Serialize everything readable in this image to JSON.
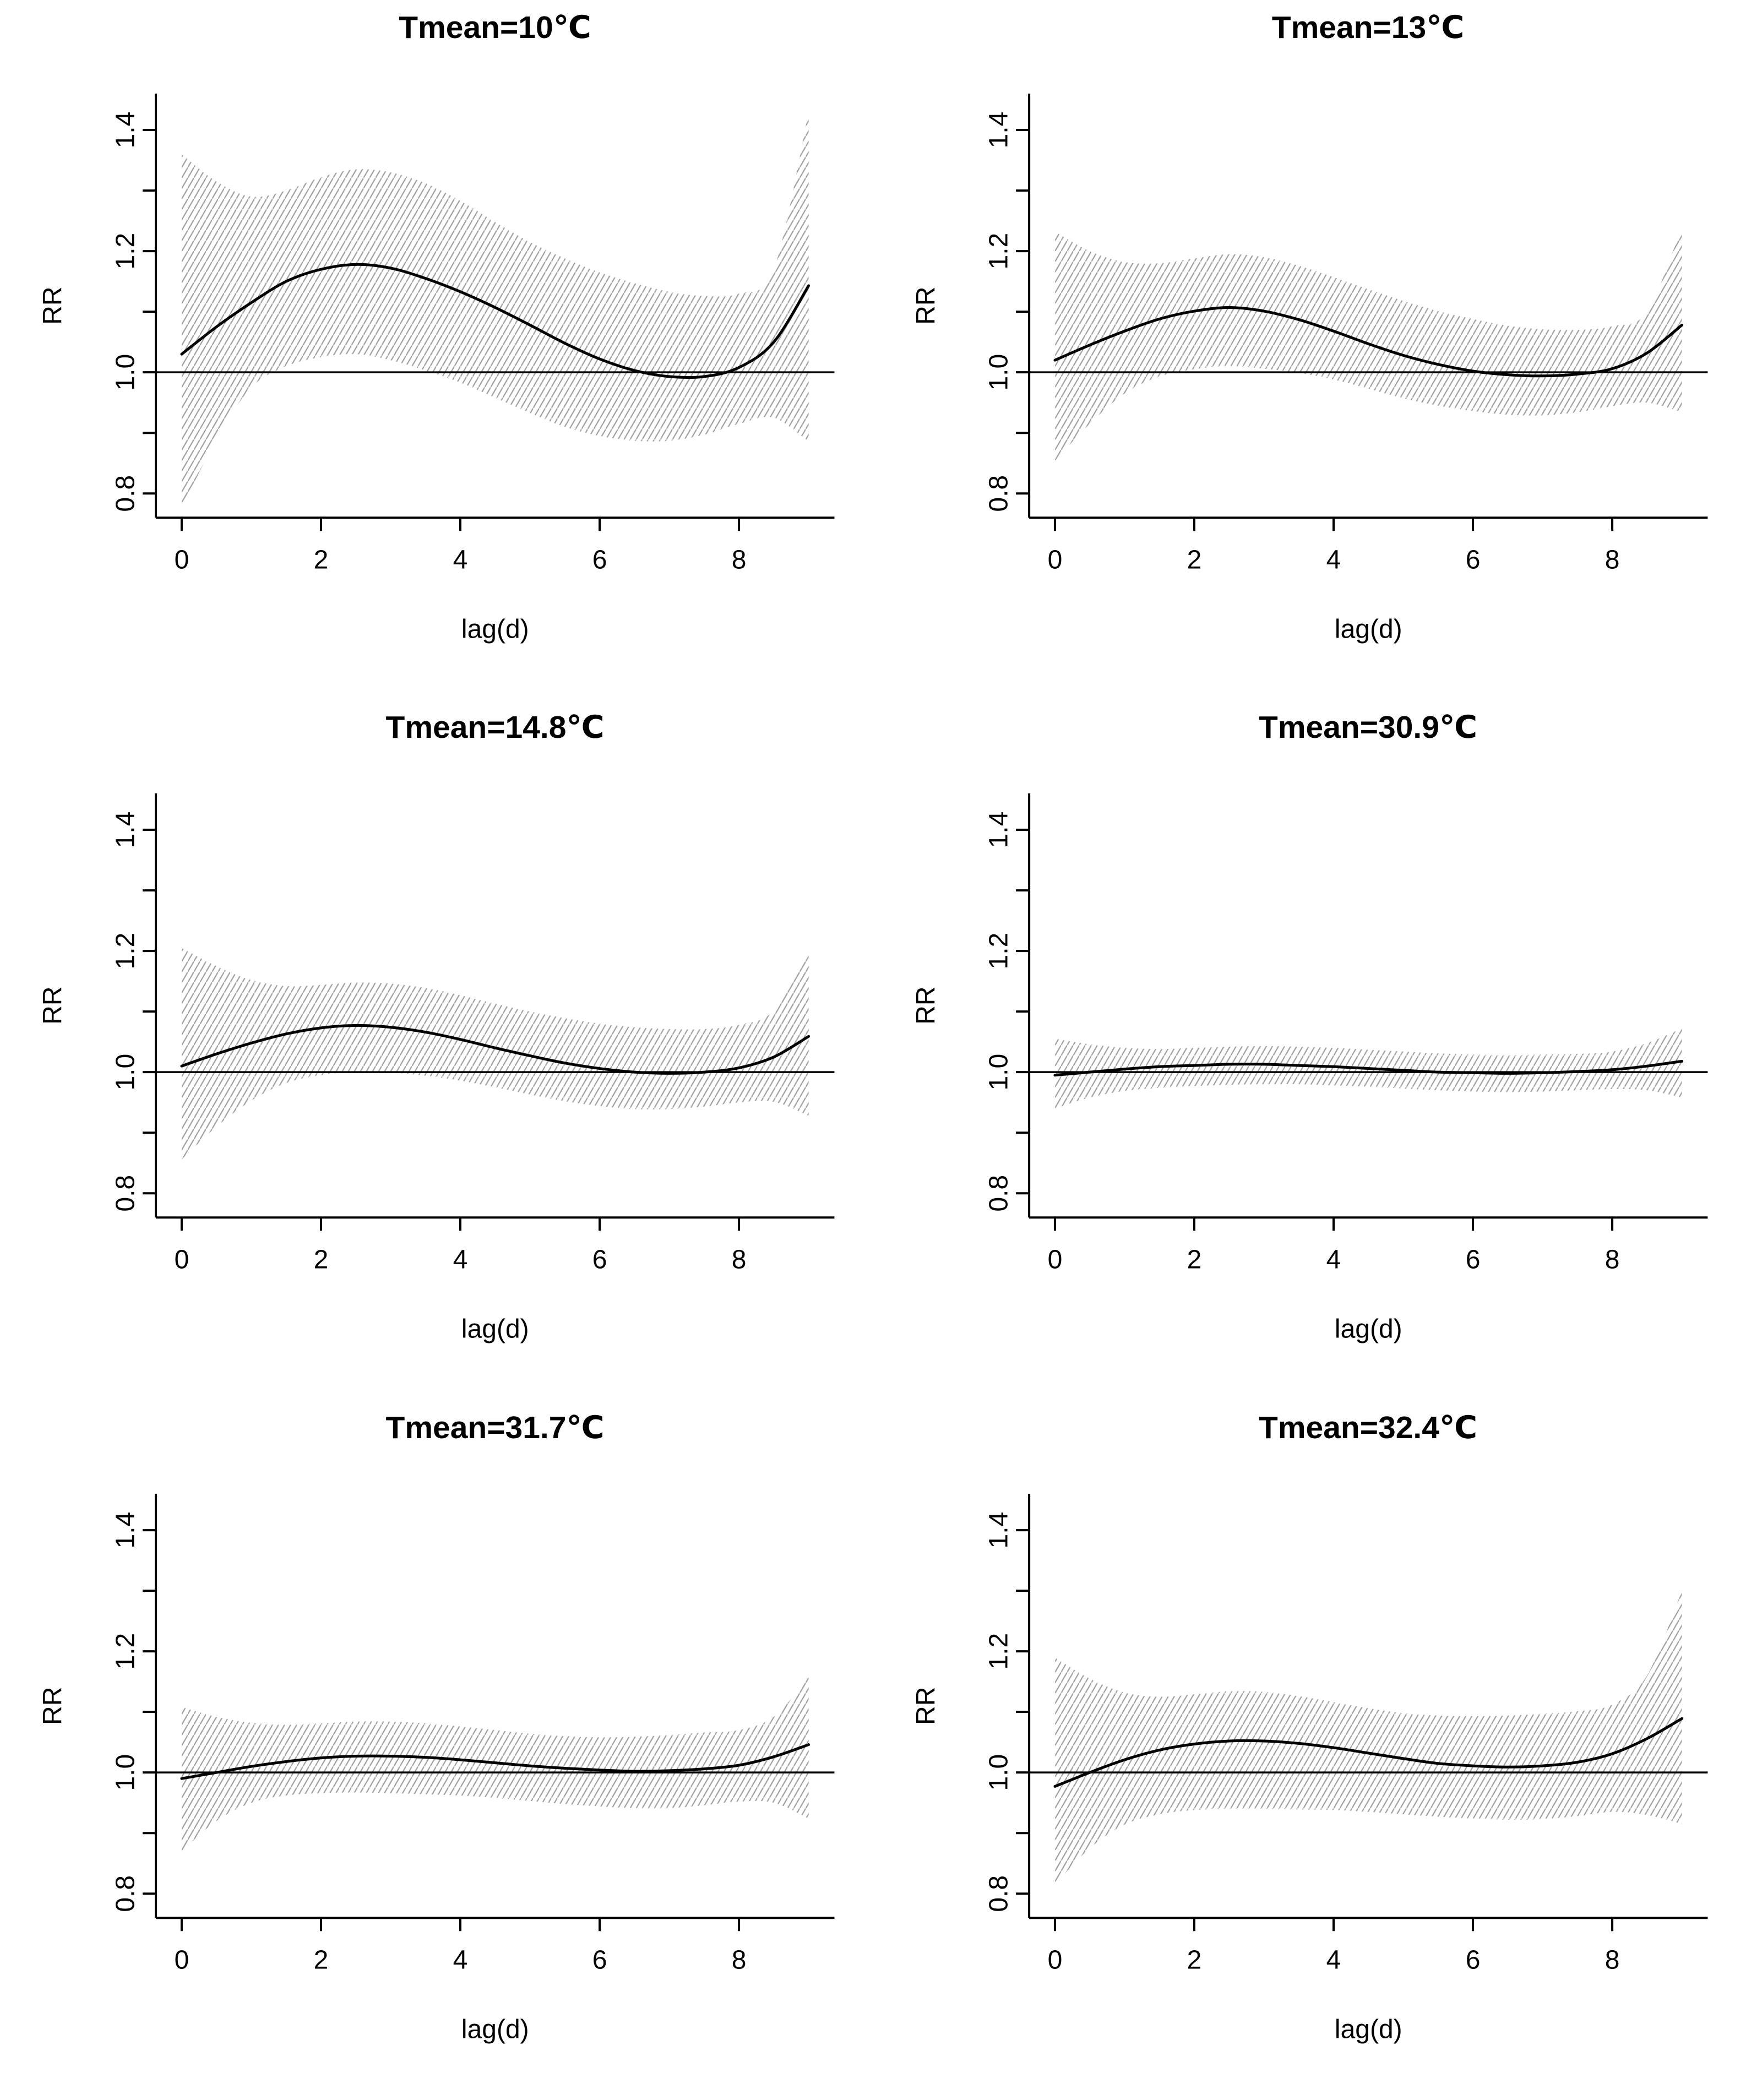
{
  "figure": {
    "layout": "2x3-grid",
    "background": "#ffffff",
    "text_color": "#000000",
    "curve_color": "#000000",
    "band_hatch_color": "#a0a0a0"
  },
  "chart_data": [
    {
      "type": "line",
      "title": "Tmean=10℃",
      "xlabel": "lag(d)",
      "ylabel": "RR",
      "x": [
        0,
        0.5,
        1,
        1.5,
        2,
        2.5,
        3,
        3.5,
        4,
        4.5,
        5,
        5.5,
        6,
        6.5,
        7,
        7.5,
        8,
        8.5,
        9
      ],
      "series": [
        {
          "name": "RR",
          "values": [
            1.03,
            1.075,
            1.115,
            1.15,
            1.17,
            1.178,
            1.172,
            1.155,
            1.133,
            1.107,
            1.078,
            1.048,
            1.022,
            1.003,
            0.993,
            0.993,
            1.008,
            1.05,
            1.143
          ]
        },
        {
          "name": "upper-CI",
          "values": [
            1.36,
            1.315,
            1.29,
            1.3,
            1.322,
            1.335,
            1.33,
            1.312,
            1.283,
            1.248,
            1.215,
            1.188,
            1.165,
            1.147,
            1.133,
            1.126,
            1.13,
            1.17,
            1.43
          ]
        },
        {
          "name": "lower-CI",
          "values": [
            0.775,
            0.89,
            0.975,
            1.01,
            1.025,
            1.03,
            1.02,
            1.003,
            0.983,
            0.958,
            0.933,
            0.91,
            0.895,
            0.887,
            0.887,
            0.897,
            0.915,
            0.925,
            0.885
          ]
        }
      ],
      "reference_line_y": 1.0,
      "x_ticks": [
        0,
        2,
        4,
        6,
        8
      ],
      "y_ticks": [
        0.8,
        0.9,
        1.0,
        1.1,
        1.2,
        1.3,
        1.4
      ],
      "y_tick_labels": [
        "0.8",
        "",
        "1.0",
        "",
        "1.2",
        "",
        "1.4"
      ],
      "xlim": [
        0,
        9
      ],
      "ylim": [
        0.76,
        1.46
      ],
      "grid": false,
      "legend": "none"
    },
    {
      "type": "line",
      "title": "Tmean=13℃",
      "xlabel": "lag(d)",
      "ylabel": "RR",
      "x": [
        0,
        0.5,
        1,
        1.5,
        2,
        2.5,
        3,
        3.5,
        4,
        4.5,
        5,
        5.5,
        6,
        6.5,
        7,
        7.5,
        8,
        8.5,
        9
      ],
      "series": [
        {
          "name": "RR",
          "values": [
            1.02,
            1.045,
            1.068,
            1.088,
            1.101,
            1.107,
            1.101,
            1.087,
            1.068,
            1.047,
            1.028,
            1.013,
            1.002,
            0.996,
            0.994,
            0.997,
            1.006,
            1.032,
            1.078
          ]
        },
        {
          "name": "upper-CI",
          "values": [
            1.232,
            1.2,
            1.182,
            1.18,
            1.188,
            1.195,
            1.19,
            1.176,
            1.157,
            1.137,
            1.118,
            1.101,
            1.088,
            1.077,
            1.071,
            1.07,
            1.076,
            1.1,
            1.24
          ]
        },
        {
          "name": "lower-CI",
          "values": [
            0.854,
            0.915,
            0.965,
            0.993,
            1.005,
            1.01,
            1.006,
            0.999,
            0.988,
            0.973,
            0.957,
            0.945,
            0.936,
            0.93,
            0.929,
            0.934,
            0.944,
            0.95,
            0.934
          ]
        }
      ],
      "reference_line_y": 1.0,
      "x_ticks": [
        0,
        2,
        4,
        6,
        8
      ],
      "y_ticks": [
        0.8,
        0.9,
        1.0,
        1.1,
        1.2,
        1.3,
        1.4
      ],
      "y_tick_labels": [
        "0.8",
        "",
        "1.0",
        "",
        "1.2",
        "",
        "1.4"
      ],
      "xlim": [
        0,
        9
      ],
      "ylim": [
        0.76,
        1.46
      ],
      "grid": false,
      "legend": "none"
    },
    {
      "type": "line",
      "title": "Tmean=14.8℃",
      "xlabel": "lag(d)",
      "ylabel": "RR",
      "x": [
        0,
        0.5,
        1,
        1.5,
        2,
        2.5,
        3,
        3.5,
        4,
        4.5,
        5,
        5.5,
        6,
        6.5,
        7,
        7.5,
        8,
        8.5,
        9
      ],
      "series": [
        {
          "name": "RR",
          "values": [
            1.01,
            1.03,
            1.048,
            1.063,
            1.073,
            1.077,
            1.074,
            1.066,
            1.054,
            1.04,
            1.027,
            1.015,
            1.006,
            1.0,
            0.998,
            1.0,
            1.007,
            1.025,
            1.059
          ]
        },
        {
          "name": "upper-CI",
          "values": [
            1.205,
            1.175,
            1.152,
            1.142,
            1.144,
            1.148,
            1.146,
            1.139,
            1.127,
            1.113,
            1.1,
            1.089,
            1.08,
            1.074,
            1.071,
            1.071,
            1.078,
            1.102,
            1.205
          ]
        },
        {
          "name": "lower-CI",
          "values": [
            0.856,
            0.91,
            0.953,
            0.982,
            0.995,
            1.0,
            0.999,
            0.994,
            0.986,
            0.975,
            0.963,
            0.952,
            0.944,
            0.939,
            0.939,
            0.943,
            0.95,
            0.951,
            0.928
          ]
        }
      ],
      "reference_line_y": 1.0,
      "x_ticks": [
        0,
        2,
        4,
        6,
        8
      ],
      "y_ticks": [
        0.8,
        0.9,
        1.0,
        1.1,
        1.2,
        1.3,
        1.4
      ],
      "y_tick_labels": [
        "0.8",
        "",
        "1.0",
        "",
        "1.2",
        "",
        "1.4"
      ],
      "xlim": [
        0,
        9
      ],
      "ylim": [
        0.76,
        1.46
      ],
      "grid": false,
      "legend": "none"
    },
    {
      "type": "line",
      "title": "Tmean=30.9℃",
      "xlabel": "lag(d)",
      "ylabel": "RR",
      "x": [
        0,
        0.5,
        1,
        1.5,
        2,
        2.5,
        3,
        3.5,
        4,
        4.5,
        5,
        5.5,
        6,
        6.5,
        7,
        7.5,
        8,
        8.5,
        9
      ],
      "series": [
        {
          "name": "RR",
          "values": [
            0.995,
            1.0,
            1.005,
            1.009,
            1.011,
            1.013,
            1.013,
            1.011,
            1.009,
            1.006,
            1.003,
            1.0,
            0.999,
            0.998,
            0.999,
            1.001,
            1.004,
            1.01,
            1.018
          ]
        },
        {
          "name": "upper-CI",
          "values": [
            1.055,
            1.046,
            1.04,
            1.038,
            1.04,
            1.042,
            1.043,
            1.042,
            1.04,
            1.037,
            1.034,
            1.031,
            1.029,
            1.028,
            1.029,
            1.03,
            1.034,
            1.048,
            1.072
          ]
        },
        {
          "name": "lower-CI",
          "values": [
            0.94,
            0.958,
            0.969,
            0.974,
            0.977,
            0.979,
            0.98,
            0.98,
            0.978,
            0.976,
            0.973,
            0.97,
            0.968,
            0.967,
            0.968,
            0.97,
            0.972,
            0.97,
            0.958
          ]
        }
      ],
      "reference_line_y": 1.0,
      "x_ticks": [
        0,
        2,
        4,
        6,
        8
      ],
      "y_ticks": [
        0.8,
        0.9,
        1.0,
        1.1,
        1.2,
        1.3,
        1.4
      ],
      "y_tick_labels": [
        "0.8",
        "",
        "1.0",
        "",
        "1.2",
        "",
        "1.4"
      ],
      "xlim": [
        0,
        9
      ],
      "ylim": [
        0.76,
        1.46
      ],
      "grid": false,
      "legend": "none"
    },
    {
      "type": "line",
      "title": "Tmean=31.7℃",
      "xlabel": "lag(d)",
      "ylabel": "RR",
      "x": [
        0,
        0.5,
        1,
        1.5,
        2,
        2.5,
        3,
        3.5,
        4,
        4.5,
        5,
        5.5,
        6,
        6.5,
        7,
        7.5,
        8,
        8.5,
        9
      ],
      "series": [
        {
          "name": "RR",
          "values": [
            0.99,
            1.0,
            1.01,
            1.018,
            1.024,
            1.027,
            1.027,
            1.025,
            1.021,
            1.016,
            1.011,
            1.007,
            1.004,
            1.002,
            1.003,
            1.006,
            1.012,
            1.026,
            1.046
          ]
        },
        {
          "name": "upper-CI",
          "values": [
            1.108,
            1.092,
            1.082,
            1.079,
            1.081,
            1.084,
            1.084,
            1.081,
            1.076,
            1.07,
            1.064,
            1.06,
            1.058,
            1.059,
            1.062,
            1.066,
            1.07,
            1.092,
            1.157
          ]
        },
        {
          "name": "lower-CI",
          "values": [
            0.87,
            0.92,
            0.95,
            0.962,
            0.966,
            0.967,
            0.966,
            0.964,
            0.962,
            0.958,
            0.953,
            0.948,
            0.944,
            0.941,
            0.941,
            0.946,
            0.952,
            0.95,
            0.924
          ]
        }
      ],
      "reference_line_y": 1.0,
      "x_ticks": [
        0,
        2,
        4,
        6,
        8
      ],
      "y_ticks": [
        0.8,
        0.9,
        1.0,
        1.1,
        1.2,
        1.3,
        1.4
      ],
      "y_tick_labels": [
        "0.8",
        "",
        "1.0",
        "",
        "1.2",
        "",
        "1.4"
      ],
      "xlim": [
        0,
        9
      ],
      "ylim": [
        0.76,
        1.46
      ],
      "grid": false,
      "legend": "none"
    },
    {
      "type": "line",
      "title": "Tmean=32.4℃",
      "xlabel": "lag(d)",
      "ylabel": "RR",
      "x": [
        0,
        0.5,
        1,
        1.5,
        2,
        2.5,
        3,
        3.5,
        4,
        4.5,
        5,
        5.5,
        6,
        6.5,
        7,
        7.5,
        8,
        8.5,
        9
      ],
      "series": [
        {
          "name": "RR",
          "values": [
            0.977,
            1.0,
            1.021,
            1.037,
            1.047,
            1.052,
            1.052,
            1.048,
            1.041,
            1.032,
            1.023,
            1.015,
            1.011,
            1.009,
            1.011,
            1.017,
            1.031,
            1.056,
            1.089
          ]
        },
        {
          "name": "upper-CI",
          "values": [
            1.19,
            1.155,
            1.132,
            1.125,
            1.129,
            1.134,
            1.133,
            1.126,
            1.116,
            1.106,
            1.098,
            1.094,
            1.093,
            1.094,
            1.097,
            1.101,
            1.112,
            1.16,
            1.3
          ]
        },
        {
          "name": "lower-CI",
          "values": [
            0.815,
            0.875,
            0.914,
            0.931,
            0.938,
            0.94,
            0.94,
            0.939,
            0.938,
            0.935,
            0.931,
            0.927,
            0.924,
            0.922,
            0.923,
            0.928,
            0.935,
            0.93,
            0.915
          ]
        }
      ],
      "reference_line_y": 1.0,
      "x_ticks": [
        0,
        2,
        4,
        6,
        8
      ],
      "y_ticks": [
        0.8,
        0.9,
        1.0,
        1.1,
        1.2,
        1.3,
        1.4
      ],
      "y_tick_labels": [
        "0.8",
        "",
        "1.0",
        "",
        "1.2",
        "",
        "1.4"
      ],
      "xlim": [
        0,
        9
      ],
      "ylim": [
        0.76,
        1.46
      ],
      "grid": false,
      "legend": "none"
    }
  ]
}
